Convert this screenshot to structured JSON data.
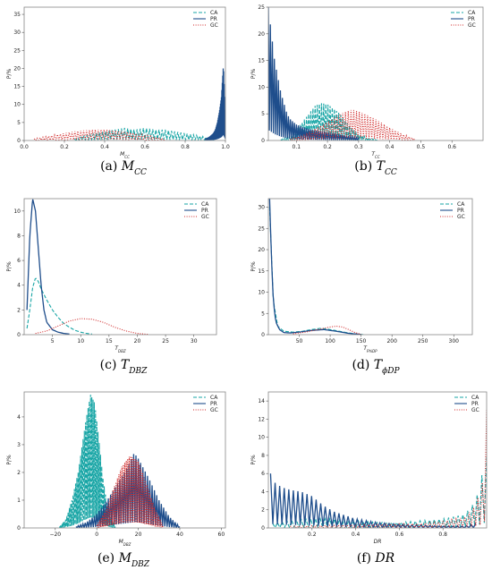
{
  "colors": {
    "CA": "#17a5a5",
    "PR": "#1f4e8c",
    "GC": "#d02b2b"
  },
  "chart_data": [
    {
      "id": "a",
      "type": "line",
      "caption": {
        "letter": "(a)",
        "var": "M",
        "sub": "CC"
      },
      "xlabel": "M_CC",
      "ylabel": "P/%",
      "xlim": [
        0,
        1.0
      ],
      "ylim": [
        0,
        37
      ],
      "xticks": [
        0.0,
        0.2,
        0.4,
        0.6,
        0.8,
        1.0
      ],
      "xtick_labels": [
        "0.0",
        "0.2",
        "0.4",
        "0.6",
        "0.8",
        "1.0"
      ],
      "yticks": [
        0,
        5,
        10,
        15,
        20,
        25,
        30,
        35
      ],
      "series": [
        {
          "name": "CA",
          "style": "dashed",
          "x": [
            0.25,
            0.3,
            0.35,
            0.4,
            0.45,
            0.5,
            0.55,
            0.6,
            0.65,
            0.7,
            0.75,
            0.8,
            0.85,
            0.9,
            0.95
          ],
          "y": [
            0.5,
            1.2,
            2,
            2.5,
            3,
            3.5,
            3,
            3.5,
            3,
            3,
            2.5,
            2,
            1.5,
            1,
            0.5
          ],
          "spiky": true
        },
        {
          "name": "PR",
          "style": "solid",
          "x": [
            0.9,
            0.92,
            0.94,
            0.95,
            0.96,
            0.97,
            0.98,
            0.99,
            1.0
          ],
          "y": [
            0.5,
            1,
            2,
            3,
            5,
            8,
            12,
            21,
            5
          ],
          "spiky": true
        },
        {
          "name": "GC",
          "style": "dotted",
          "x": [
            0.05,
            0.1,
            0.15,
            0.2,
            0.25,
            0.3,
            0.35,
            0.4,
            0.45,
            0.5,
            0.55,
            0.6,
            0.65,
            0.7
          ],
          "y": [
            0.5,
            1,
            1.5,
            2,
            2.5,
            2.8,
            3,
            3,
            2.8,
            2.5,
            2,
            1.5,
            1,
            0.5
          ],
          "spiky": true
        }
      ],
      "legend": [
        "CA",
        "PR",
        "GC"
      ],
      "legend_loc": "top-right"
    },
    {
      "id": "b",
      "type": "line",
      "caption": {
        "letter": "(b)",
        "var": "T",
        "sub": "CC"
      },
      "xlabel": "T_CC",
      "ylabel": "P/%",
      "xlim": [
        0.01,
        0.7
      ],
      "ylim": [
        0,
        25
      ],
      "xticks": [
        0.1,
        0.2,
        0.3,
        0.4,
        0.5,
        0.6
      ],
      "xtick_labels": [
        "0.1",
        "0.2",
        "0.3",
        "0.4",
        "0.5",
        "0.6"
      ],
      "yticks": [
        0,
        5,
        10,
        15,
        20,
        25
      ],
      "series": [
        {
          "name": "CA",
          "style": "dashed",
          "x": [
            0.05,
            0.08,
            0.1,
            0.12,
            0.14,
            0.16,
            0.18,
            0.2,
            0.22,
            0.24,
            0.26,
            0.28,
            0.3,
            0.33,
            0.36
          ],
          "y": [
            0.2,
            1,
            2,
            3.5,
            5,
            6.5,
            7,
            6.8,
            6,
            5,
            3.5,
            2.2,
            1.2,
            0.5,
            0.1
          ],
          "spiky": true
        },
        {
          "name": "PR",
          "style": "solid",
          "x": [
            0.01,
            0.02,
            0.03,
            0.04,
            0.05,
            0.06,
            0.07,
            0.08,
            0.1,
            0.12,
            0.15,
            0.2,
            0.25,
            0.3
          ],
          "y": [
            25,
            20,
            15,
            12,
            9,
            7,
            5,
            4,
            3,
            2.5,
            2,
            1.5,
            1,
            0.5
          ],
          "spiky": true
        },
        {
          "name": "GC",
          "style": "dotted",
          "x": [
            0.08,
            0.12,
            0.16,
            0.2,
            0.24,
            0.28,
            0.32,
            0.36,
            0.4,
            0.44,
            0.48
          ],
          "y": [
            0.3,
            1,
            2.2,
            3.5,
            5,
            5.8,
            5,
            3.8,
            2.4,
            1.2,
            0.3
          ],
          "spiky": true
        }
      ],
      "legend": [
        "CA",
        "PR",
        "GC"
      ],
      "legend_loc": "top-right"
    },
    {
      "id": "c",
      "type": "line",
      "caption": {
        "letter": "(c)",
        "var": "T",
        "sub": "DBZ"
      },
      "xlabel": "T_DBZ",
      "ylabel": "P/%",
      "xlim": [
        0,
        34
      ],
      "ylim": [
        0,
        11
      ],
      "xticks": [
        5,
        10,
        15,
        20,
        25,
        30
      ],
      "xtick_labels": [
        "5",
        "10",
        "15",
        "20",
        "25",
        "30"
      ],
      "yticks": [
        0,
        2,
        4,
        6,
        8,
        10
      ],
      "series": [
        {
          "name": "CA",
          "style": "dashed",
          "x": [
            0.5,
            1,
            1.5,
            2,
            2.5,
            3,
            4,
            5,
            6,
            7,
            8,
            9,
            10,
            11,
            12
          ],
          "y": [
            0.5,
            2,
            3.8,
            4.6,
            4.3,
            3.7,
            2.8,
            2,
            1.4,
            0.9,
            0.6,
            0.35,
            0.2,
            0.1,
            0.05
          ],
          "spiky": false
        },
        {
          "name": "PR",
          "style": "solid",
          "x": [
            0.5,
            1,
            1.5,
            2,
            2.5,
            3,
            3.5,
            4,
            5,
            6,
            7,
            8
          ],
          "y": [
            2,
            8,
            11,
            10,
            7,
            4,
            2,
            1,
            0.4,
            0.2,
            0.1,
            0.05
          ],
          "spiky": false
        },
        {
          "name": "GC",
          "style": "dotted",
          "x": [
            2,
            4,
            6,
            8,
            10,
            12,
            14,
            16,
            18,
            20,
            22
          ],
          "y": [
            0.1,
            0.3,
            0.7,
            1.1,
            1.3,
            1.25,
            1,
            0.6,
            0.3,
            0.1,
            0.02
          ],
          "spiky": false
        }
      ],
      "legend": [
        "CA",
        "PR",
        "GC"
      ],
      "legend_loc": "top-right"
    },
    {
      "id": "d",
      "type": "line",
      "caption": {
        "letter": "(d)",
        "var": "T",
        "sub": "ϕDP"
      },
      "xlabel": "T_PhiDP",
      "ylabel": "P/%",
      "xlim": [
        0,
        330
      ],
      "ylim": [
        0,
        32
      ],
      "xticks": [
        50,
        100,
        150,
        200,
        250,
        300
      ],
      "xtick_labels": [
        "50",
        "100",
        "150",
        "200",
        "250",
        "300"
      ],
      "yticks": [
        0,
        5,
        10,
        15,
        20,
        25,
        30
      ],
      "series": [
        {
          "name": "CA",
          "style": "dashed",
          "x": [
            2,
            8,
            15,
            25,
            40,
            55,
            70,
            85,
            100,
            115,
            130,
            145,
            155
          ],
          "y": [
            30,
            8,
            2,
            0.8,
            0.6,
            0.8,
            1.2,
            1.5,
            1.2,
            0.8,
            0.4,
            0.1,
            0
          ],
          "spiky": false
        },
        {
          "name": "PR",
          "style": "solid",
          "x": [
            2,
            5,
            8,
            12,
            18,
            25,
            35,
            50,
            70,
            90,
            110,
            130,
            150
          ],
          "y": [
            32,
            18,
            8,
            3,
            1.2,
            0.5,
            0.4,
            0.6,
            1,
            1.2,
            0.8,
            0.3,
            0.05
          ],
          "spiky": false
        },
        {
          "name": "GC",
          "style": "dotted",
          "x": [
            40,
            60,
            80,
            100,
            110,
            120,
            130,
            140,
            150
          ],
          "y": [
            0.2,
            0.6,
            1.2,
            1.8,
            2,
            1.8,
            1.2,
            0.5,
            0.1
          ],
          "spiky": false
        }
      ],
      "legend": [
        "CA",
        "PR",
        "GC"
      ],
      "legend_loc": "top-right"
    },
    {
      "id": "e",
      "type": "line",
      "caption": {
        "letter": "(e)",
        "var": "M",
        "sub": "DBZ"
      },
      "xlabel": "M_DBZ",
      "ylabel": "P/%",
      "xlim": [
        -35,
        62
      ],
      "ylim": [
        0,
        4.9
      ],
      "xticks": [
        -20,
        0,
        20,
        40,
        60
      ],
      "xtick_labels": [
        "−20",
        "0",
        "20",
        "40",
        "60"
      ],
      "yticks": [
        0,
        1,
        2,
        3,
        4
      ],
      "series": [
        {
          "name": "CA",
          "style": "dashed",
          "x": [
            -18,
            -15,
            -12,
            -9,
            -7,
            -5,
            -3,
            -1,
            1,
            3,
            5,
            7,
            9
          ],
          "y": [
            0.05,
            0.3,
            1,
            2,
            3,
            4,
            4.8,
            4.5,
            3.2,
            1.8,
            0.8,
            0.3,
            0.05
          ],
          "spiky": true
        },
        {
          "name": "PR",
          "style": "solid",
          "x": [
            -10,
            -5,
            0,
            5,
            10,
            15,
            18,
            20,
            25,
            30,
            35,
            40
          ],
          "y": [
            0.05,
            0.2,
            0.5,
            1,
            1.6,
            2.2,
            2.7,
            2.5,
            1.8,
            1,
            0.4,
            0.05
          ],
          "spiky": true
        },
        {
          "name": "GC",
          "style": "dotted",
          "x": [
            0,
            4,
            8,
            12,
            16,
            20,
            24,
            28,
            32
          ],
          "y": [
            0.1,
            0.6,
            1.4,
            2.2,
            2.6,
            2.4,
            1.6,
            0.7,
            0.1
          ],
          "spiky": true
        }
      ],
      "legend": [
        "CA",
        "PR",
        "GC"
      ],
      "legend_loc": "top-right"
    },
    {
      "id": "f",
      "type": "line",
      "caption": {
        "letter": "(f)",
        "var": "DR",
        "sub": ""
      },
      "xlabel": "DR",
      "ylabel": "P/%",
      "xlim": [
        0,
        1.0
      ],
      "ylim": [
        0,
        15
      ],
      "xticks": [
        0.2,
        0.4,
        0.6,
        0.8
      ],
      "xtick_labels": [
        "0.2",
        "0.4",
        "0.6",
        "0.8"
      ],
      "yticks": [
        0,
        2,
        4,
        6,
        8,
        10,
        12,
        14
      ],
      "series": [
        {
          "name": "CA",
          "style": "dashed",
          "x": [
            0.02,
            0.1,
            0.2,
            0.3,
            0.4,
            0.5,
            0.6,
            0.7,
            0.8,
            0.9,
            0.95,
            0.98,
            1.0
          ],
          "y": [
            0.5,
            0.8,
            1,
            1,
            0.8,
            0.6,
            0.6,
            0.8,
            1,
            1.5,
            3,
            6,
            8
          ],
          "spiky": true
        },
        {
          "name": "PR",
          "style": "solid",
          "x": [
            0.01,
            0.03,
            0.06,
            0.1,
            0.15,
            0.2,
            0.25,
            0.3,
            0.35,
            0.4,
            0.5,
            0.6,
            0.7,
            0.8,
            0.9,
            0.95
          ],
          "y": [
            6,
            5,
            4.5,
            4.2,
            4,
            3.5,
            2.5,
            1.8,
            1.4,
            1,
            0.6,
            0.4,
            0.3,
            0.2,
            0.2,
            0.5
          ],
          "spiky": true
        },
        {
          "name": "GC",
          "style": "dotted",
          "x": [
            0.1,
            0.3,
            0.5,
            0.7,
            0.8,
            0.9,
            0.95,
            0.98,
            1.0
          ],
          "y": [
            0.2,
            0.3,
            0.4,
            0.5,
            0.7,
            1.2,
            2.5,
            5,
            13
          ],
          "spiky": true
        }
      ],
      "legend": [
        "CA",
        "PR",
        "GC"
      ],
      "legend_loc": "top-right"
    }
  ]
}
